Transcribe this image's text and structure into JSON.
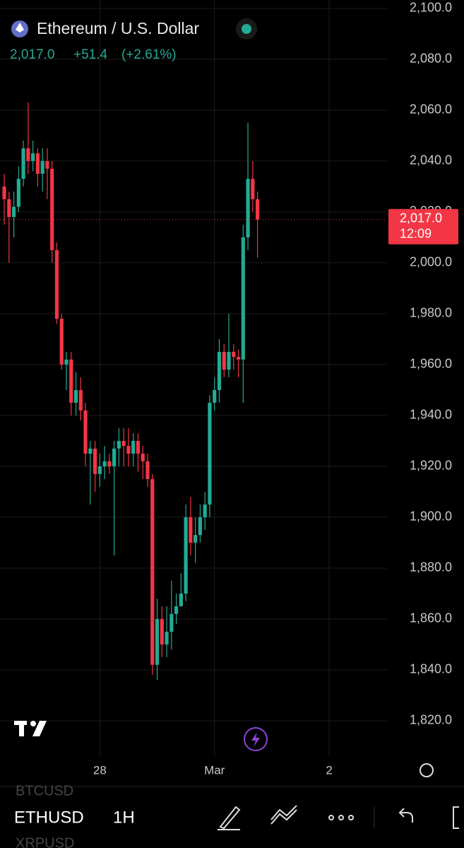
{
  "header": {
    "title": "Ethereum / U.S. Dollar",
    "price": "2,017.0",
    "change": "+51.4",
    "change_pct": "(+2.61%)"
  },
  "toolbar": {
    "symbol": "ETHUSD",
    "interval": "1H",
    "ghost_top": "BTCUSD",
    "ghost_bottom": "XRPUSD"
  },
  "chart_data": {
    "type": "candlestick",
    "up_color": "#22ab94",
    "down_color": "#f23645",
    "grid": true,
    "categories": [
      null,
      null,
      null,
      null,
      null,
      null,
      null,
      null,
      null,
      null,
      null,
      null,
      null,
      null,
      null,
      null,
      null,
      null,
      null,
      null,
      "28",
      null,
      null,
      null,
      null,
      null,
      null,
      null,
      null,
      null,
      null,
      null,
      null,
      null,
      null,
      null,
      null,
      null,
      null,
      null,
      null,
      null,
      null,
      null,
      "Mar",
      null,
      null,
      null,
      null,
      null,
      null,
      null,
      null,
      null,
      null,
      null,
      null,
      null,
      null,
      null,
      null,
      null,
      null,
      null,
      null,
      null,
      null,
      null,
      "2",
      null,
      null,
      null,
      null,
      null,
      null,
      null,
      null,
      null,
      null,
      null,
      null
    ],
    "open": [
      2030,
      2025,
      2018,
      2022,
      2033,
      2045,
      2040,
      2043,
      2035,
      2040,
      2037,
      2005,
      1978,
      1960,
      1962,
      1945,
      1950,
      1942,
      1925,
      1927,
      1917,
      1920,
      1922,
      1920,
      1927,
      1930,
      1928,
      1925,
      1930,
      1925,
      1922,
      1915,
      1842,
      1860,
      1850,
      1855,
      1862,
      1865,
      1870,
      1900,
      1890,
      1893,
      1900,
      1905,
      1945,
      1950,
      1965,
      1958,
      1965,
      1963,
      1962,
      2010,
      2033,
      2025,
      null,
      null,
      null,
      null,
      null,
      null,
      null,
      null,
      null,
      null,
      null,
      null,
      null,
      null,
      null,
      null,
      null,
      null,
      null,
      null,
      null,
      null,
      null,
      null,
      null,
      null,
      null
    ],
    "high": [
      2035,
      2028,
      2028,
      2038,
      2048,
      2063,
      2048,
      2045,
      2045,
      2045,
      2040,
      2008,
      1980,
      1965,
      1965,
      1957,
      1955,
      1945,
      1930,
      1930,
      1925,
      1928,
      1925,
      1930,
      1935,
      1935,
      1935,
      1933,
      1933,
      1928,
      1925,
      1917,
      1868,
      1865,
      1865,
      1875,
      1870,
      1878,
      1905,
      1908,
      1900,
      1905,
      1910,
      1948,
      1955,
      1970,
      1968,
      1980,
      1968,
      1966,
      2015,
      2055,
      2040,
      2028,
      null,
      null,
      null,
      null,
      null,
      null,
      null,
      null,
      null,
      null,
      null,
      null,
      null,
      null,
      null,
      null,
      null,
      null,
      null,
      null,
      null,
      null,
      null,
      null,
      null,
      null,
      null
    ],
    "low": [
      2015,
      2000,
      2010,
      2020,
      2030,
      2035,
      2036,
      2030,
      2028,
      2025,
      2000,
      1976,
      1958,
      1950,
      1940,
      1940,
      1938,
      1920,
      1905,
      1910,
      1912,
      1915,
      1917,
      1885,
      1920,
      1920,
      1920,
      1920,
      1918,
      1915,
      1912,
      1838,
      1836,
      1845,
      1845,
      1848,
      1858,
      1865,
      1867,
      1885,
      1882,
      1890,
      1895,
      1900,
      1942,
      1945,
      1955,
      1955,
      1958,
      1955,
      1945,
      2005,
      2020,
      2002,
      null,
      null,
      null,
      null,
      null,
      null,
      null,
      null,
      null,
      null,
      null,
      null,
      null,
      null,
      null,
      null,
      null,
      null,
      null,
      null,
      null,
      null,
      null,
      null,
      null,
      null,
      null
    ],
    "close": [
      2025,
      2018,
      2022,
      2033,
      2045,
      2040,
      2043,
      2035,
      2040,
      2037,
      2005,
      1978,
      1960,
      1962,
      1945,
      1950,
      1942,
      1925,
      1927,
      1917,
      1920,
      1922,
      1920,
      1927,
      1930,
      1928,
      1925,
      1930,
      1925,
      1922,
      1915,
      1842,
      1860,
      1850,
      1855,
      1862,
      1865,
      1870,
      1900,
      1890,
      1893,
      1900,
      1905,
      1945,
      1950,
      1965,
      1958,
      1965,
      1963,
      1962,
      2010,
      2033,
      2025,
      2017,
      null,
      null,
      null,
      null,
      null,
      null,
      null,
      null,
      null,
      null,
      null,
      null,
      null,
      null,
      null,
      null,
      null,
      null,
      null,
      null,
      null,
      null,
      null,
      null,
      null,
      null,
      null
    ],
    "ylim": [
      1806.1,
      2103.3
    ],
    "yticks": [
      {
        "value": 2100,
        "label": "2,100.0"
      },
      {
        "value": 2080,
        "label": "2,080.0"
      },
      {
        "value": 2060,
        "label": "2,060.0"
      },
      {
        "value": 2040,
        "label": "2,040.0"
      },
      {
        "value": 2020,
        "label": "2,020.0"
      },
      {
        "value": 2000,
        "label": "2,000.0"
      },
      {
        "value": 1980,
        "label": "1,980.0"
      },
      {
        "value": 1960,
        "label": "1,960.0"
      },
      {
        "value": 1940,
        "label": "1,940.0"
      },
      {
        "value": 1920,
        "label": "1,920.0"
      },
      {
        "value": 1900,
        "label": "1,900.0"
      },
      {
        "value": 1880,
        "label": "1,880.0"
      },
      {
        "value": 1860,
        "label": "1,860.0"
      },
      {
        "value": 1840,
        "label": "1,840.0"
      },
      {
        "value": 1820,
        "label": "1,820.0"
      }
    ],
    "last_price": {
      "value": 2017,
      "label": "2,017.0"
    },
    "countdown": "12:09"
  }
}
